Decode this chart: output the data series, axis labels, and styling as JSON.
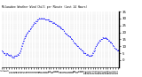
{
  "title": "Milwaukee Weather Wind Chill per Minute (Last 24 Hours)",
  "line_color": "#0000FF",
  "bg_color": "#ffffff",
  "ylim": [
    -5,
    35
  ],
  "yticks": [
    0,
    5,
    10,
    15,
    20,
    25,
    30,
    35
  ],
  "y_values": [
    7,
    6,
    6,
    5,
    5,
    4,
    4,
    5,
    4,
    4,
    3,
    4,
    3,
    2,
    2,
    2,
    3,
    3,
    3,
    3,
    4,
    4,
    5,
    6,
    8,
    10,
    12,
    14,
    16,
    17,
    18,
    19,
    20,
    21,
    21,
    22,
    23,
    24,
    25,
    26,
    27,
    27,
    28,
    28,
    29,
    29,
    30,
    30,
    30,
    30,
    30,
    30,
    30,
    29,
    29,
    29,
    29,
    29,
    28,
    28,
    28,
    28,
    27,
    27,
    27,
    26,
    26,
    25,
    25,
    25,
    24,
    24,
    23,
    23,
    22,
    22,
    21,
    20,
    19,
    19,
    18,
    18,
    17,
    17,
    16,
    15,
    15,
    14,
    13,
    12,
    12,
    11,
    10,
    10,
    9,
    8,
    8,
    7,
    7,
    6,
    5,
    5,
    5,
    4,
    4,
    4,
    3,
    3,
    3,
    3,
    4,
    5,
    6,
    7,
    9,
    10,
    11,
    12,
    13,
    14,
    14,
    15,
    15,
    16,
    16,
    16,
    16,
    16,
    15,
    15,
    14,
    14,
    13,
    13,
    12,
    11,
    10,
    9,
    8,
    8,
    7,
    7,
    7,
    7
  ]
}
